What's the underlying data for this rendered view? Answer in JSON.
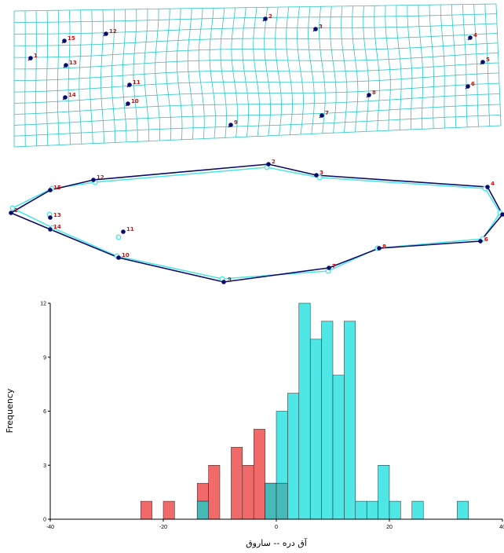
{
  "landmarks": [
    {
      "id": "1",
      "label": "1"
    },
    {
      "id": "2",
      "label": "2"
    },
    {
      "id": "3",
      "label": "3"
    },
    {
      "id": "4",
      "label": "4"
    },
    {
      "id": "5",
      "label": "5"
    },
    {
      "id": "6",
      "label": "6"
    },
    {
      "id": "7",
      "label": "7"
    },
    {
      "id": "8",
      "label": "8"
    },
    {
      "id": "9",
      "label": "9"
    },
    {
      "id": "10",
      "label": "10"
    },
    {
      "id": "11",
      "label": "11"
    },
    {
      "id": "12",
      "label": "12"
    },
    {
      "id": "13",
      "label": "13"
    },
    {
      "id": "14",
      "label": "14"
    },
    {
      "id": "15",
      "label": "15"
    }
  ],
  "colors": {
    "grid": "#2ec4c4",
    "dark": "#0b0b6b",
    "cyan": "#4fe6e6",
    "red": "#f06a6a",
    "overlap": "#47b9b9",
    "label": "#cc1111"
  },
  "chart_data": {
    "type": "bar",
    "xlabel": "آق دره -- ساروق",
    "ylabel": "Frequency",
    "xlim": [
      -40,
      40
    ],
    "ylim": [
      0,
      12
    ],
    "xticks": [
      "-40",
      "-20",
      "0",
      "20",
      "40"
    ],
    "yticks": [
      "0",
      "3",
      "6",
      "9",
      "12"
    ],
    "bin_width": 2,
    "series": [
      {
        "color": "red",
        "bins": [
          {
            "x0": -24,
            "count": 1
          },
          {
            "x0": -20,
            "count": 1
          },
          {
            "x0": -14,
            "count": 2
          },
          {
            "x0": -12,
            "count": 3
          },
          {
            "x0": -8,
            "count": 4
          },
          {
            "x0": -6,
            "count": 3
          },
          {
            "x0": -4,
            "count": 5
          },
          {
            "x0": -2,
            "count": 2
          },
          {
            "x0": 0,
            "count": 2
          }
        ]
      },
      {
        "color": "cyan",
        "bins": [
          {
            "x0": -14,
            "count": 1
          },
          {
            "x0": -2,
            "count": 2
          },
          {
            "x0": 0,
            "count": 6
          },
          {
            "x0": 2,
            "count": 7
          },
          {
            "x0": 4,
            "count": 12
          },
          {
            "x0": 6,
            "count": 10
          },
          {
            "x0": 8,
            "count": 11
          },
          {
            "x0": 10,
            "count": 8
          },
          {
            "x0": 12,
            "count": 11
          },
          {
            "x0": 14,
            "count": 1
          },
          {
            "x0": 16,
            "count": 1
          },
          {
            "x0": 18,
            "count": 3
          },
          {
            "x0": 20,
            "count": 1
          },
          {
            "x0": 24,
            "count": 1
          },
          {
            "x0": 32,
            "count": 1
          }
        ]
      }
    ]
  }
}
